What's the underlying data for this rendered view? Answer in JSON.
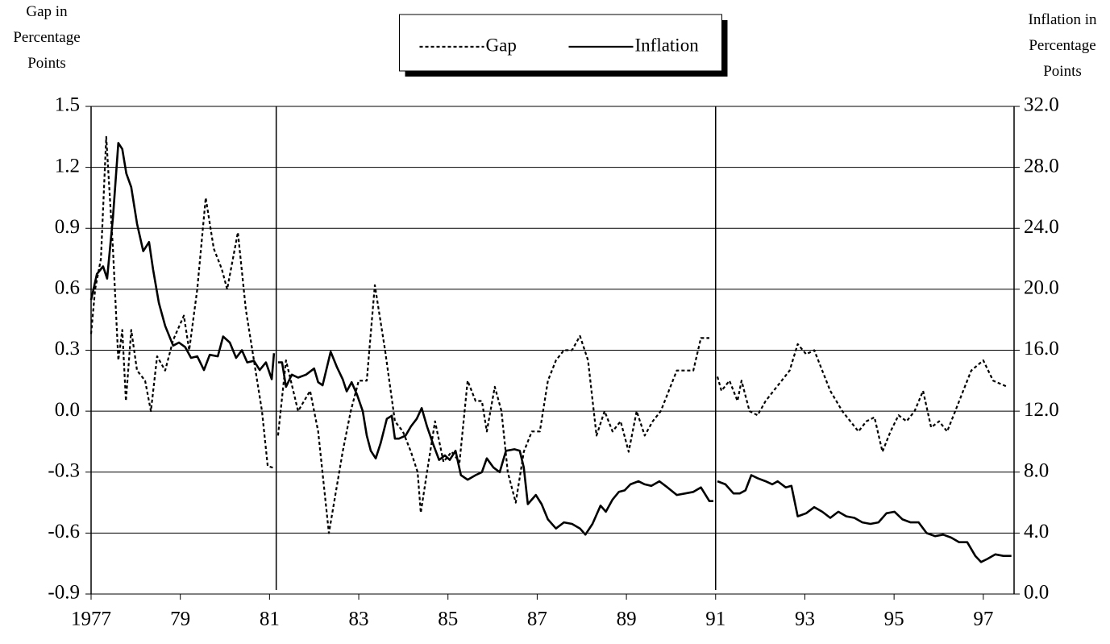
{
  "chart_data": {
    "type": "line",
    "y_label": [
      "Gap in",
      "Percentage",
      "Points"
    ],
    "y2_label": [
      "Inflation in",
      "Percentage",
      "Points"
    ],
    "xlim": [
      1977,
      1997.69
    ],
    "xticks": [
      {
        "value": 1977,
        "label": "1977"
      },
      {
        "value": 1979,
        "label": "79"
      },
      {
        "value": 1981,
        "label": "81"
      },
      {
        "value": 1983,
        "label": "83"
      },
      {
        "value": 1985,
        "label": "85"
      },
      {
        "value": 1987,
        "label": "87"
      },
      {
        "value": 1989,
        "label": "89"
      },
      {
        "value": 1991,
        "label": "91"
      },
      {
        "value": 1993,
        "label": "93"
      },
      {
        "value": 1995,
        "label": "95"
      },
      {
        "value": 1997,
        "label": "97"
      }
    ],
    "ylim": [
      -0.9,
      1.5
    ],
    "yticks": [
      -0.9,
      -0.6,
      -0.3,
      {
        "value": 0,
        "label": "0.0"
      },
      0.3,
      0.6,
      0.9,
      1.2,
      1.5
    ],
    "y2lim": [
      0,
      32
    ],
    "y2ticks": [
      {
        "value": 0,
        "label": "0.0"
      },
      {
        "value": 4,
        "label": "4.0"
      },
      {
        "value": 8,
        "label": "8.0"
      },
      {
        "value": 12,
        "label": "12.0"
      },
      {
        "value": 16,
        "label": "16.0"
      },
      {
        "value": 20,
        "label": "20.0"
      },
      {
        "value": 24,
        "label": "24.0"
      },
      {
        "value": 28,
        "label": "28.0"
      },
      {
        "value": 32,
        "label": "32.0"
      }
    ],
    "vlines": [
      1981.15,
      1991.0
    ],
    "grid": true,
    "legend": "top-center",
    "series": [
      {
        "name": "Gap",
        "color": "#000000",
        "style": "dotted",
        "x": [
          1977.0,
          1977.09,
          1977.22,
          1977.34,
          1977.49,
          1977.61,
          1977.7,
          1977.78,
          1977.9,
          1978.03,
          1978.21,
          1978.34,
          1978.48,
          1978.66,
          1978.84,
          1979.08,
          1979.2,
          1979.38,
          1979.57,
          1979.75,
          1979.93,
          1980.05,
          1980.29,
          1980.47,
          1980.65,
          1980.83,
          1980.96,
          1981.1,
          1981.15,
          1981.19,
          1981.37,
          1981.64,
          1981.91,
          1982.09,
          1982.33,
          1982.64,
          1982.82,
          1983.0,
          1983.18,
          1983.36,
          1983.59,
          1983.81,
          1983.99,
          1984.17,
          1984.32,
          1984.39,
          1984.53,
          1984.71,
          1984.9,
          1985.08,
          1985.26,
          1985.44,
          1985.62,
          1985.76,
          1985.87,
          1986.05,
          1986.2,
          1986.34,
          1986.52,
          1986.7,
          1986.88,
          1987.06,
          1987.24,
          1987.42,
          1987.6,
          1987.78,
          1987.96,
          1988.14,
          1988.33,
          1988.51,
          1988.69,
          1988.87,
          1989.05,
          1989.23,
          1989.41,
          1989.59,
          1989.77,
          1989.95,
          1990.13,
          1990.5,
          1990.67,
          1990.86,
          1991.0,
          1991.04,
          1991.13,
          1991.31,
          1991.49,
          1991.58,
          1991.76,
          1991.94,
          1992.12,
          1992.3,
          1992.48,
          1992.66,
          1992.84,
          1993.03,
          1993.21,
          1993.39,
          1993.57,
          1993.84,
          1994.02,
          1994.2,
          1994.38,
          1994.56,
          1994.74,
          1994.92,
          1995.1,
          1995.28,
          1995.46,
          1995.65,
          1995.83,
          1996.01,
          1996.19,
          1996.37,
          1996.55,
          1996.73,
          1997.0,
          1997.22,
          1997.54
        ],
        "values": [
          0.38,
          0.6,
          0.75,
          1.35,
          0.8,
          0.25,
          0.4,
          0.05,
          0.4,
          0.2,
          0.15,
          0.0,
          0.27,
          0.2,
          0.35,
          0.47,
          0.3,
          0.6,
          1.05,
          0.8,
          0.7,
          0.6,
          0.88,
          0.5,
          0.25,
          0.0,
          -0.27,
          -0.28,
          null,
          -0.12,
          0.25,
          0.0,
          0.1,
          -0.1,
          -0.6,
          -0.2,
          0.0,
          0.15,
          0.15,
          0.62,
          0.3,
          -0.05,
          -0.1,
          -0.2,
          -0.3,
          -0.5,
          -0.3,
          -0.05,
          -0.25,
          -0.2,
          -0.25,
          0.15,
          0.05,
          0.05,
          -0.1,
          0.12,
          0.0,
          -0.3,
          -0.45,
          -0.2,
          -0.1,
          -0.1,
          0.15,
          0.25,
          0.3,
          0.3,
          0.37,
          0.25,
          -0.12,
          0.0,
          -0.1,
          -0.05,
          -0.2,
          0.0,
          -0.12,
          -0.05,
          0.0,
          0.1,
          0.2,
          0.2,
          0.36,
          0.36,
          null,
          0.17,
          0.1,
          0.15,
          0.05,
          0.15,
          0.0,
          -0.02,
          0.05,
          0.1,
          0.15,
          0.2,
          0.33,
          0.28,
          0.3,
          0.2,
          0.1,
          0.0,
          -0.05,
          -0.1,
          -0.05,
          -0.03,
          -0.2,
          -0.1,
          -0.02,
          -0.05,
          0.0,
          0.1,
          -0.08,
          -0.05,
          -0.1,
          0.0,
          0.1,
          0.2,
          0.25,
          0.15,
          0.12
        ]
      },
      {
        "name": "Inflation",
        "color": "#000000",
        "style": "solid",
        "axis": "y2",
        "x": [
          1977.0,
          1977.13,
          1977.27,
          1977.36,
          1977.49,
          1977.61,
          1977.7,
          1977.79,
          1977.9,
          1978.03,
          1978.17,
          1978.3,
          1978.39,
          1978.52,
          1978.66,
          1978.84,
          1978.97,
          1979.11,
          1979.24,
          1979.38,
          1979.53,
          1979.66,
          1979.84,
          1979.96,
          1980.11,
          1980.25,
          1980.38,
          1980.5,
          1980.65,
          1980.78,
          1980.92,
          1981.05,
          1981.1,
          1981.15,
          1981.19,
          1981.28,
          1981.37,
          1981.5,
          1981.64,
          1981.82,
          1982.0,
          1982.09,
          1982.19,
          1982.37,
          1982.51,
          1982.64,
          1982.73,
          1982.84,
          1982.96,
          1983.09,
          1983.18,
          1983.27,
          1983.38,
          1983.49,
          1983.63,
          1983.74,
          1983.81,
          1983.9,
          1984.05,
          1984.17,
          1984.3,
          1984.41,
          1984.53,
          1984.66,
          1984.8,
          1984.93,
          1985.04,
          1985.17,
          1985.29,
          1985.44,
          1985.62,
          1985.76,
          1985.87,
          1986.02,
          1986.16,
          1986.3,
          1986.49,
          1986.61,
          1986.7,
          1986.79,
          1986.97,
          1987.1,
          1987.24,
          1987.42,
          1987.6,
          1987.78,
          1987.96,
          1988.08,
          1988.24,
          1988.42,
          1988.54,
          1988.69,
          1988.83,
          1988.96,
          1989.09,
          1989.27,
          1989.41,
          1989.56,
          1989.74,
          1989.92,
          1990.13,
          1990.32,
          1990.5,
          1990.67,
          1990.86,
          1990.95,
          1991.0,
          1991.04,
          1991.22,
          1991.4,
          1991.54,
          1991.67,
          1991.8,
          1991.94,
          1992.12,
          1992.27,
          1992.39,
          1992.57,
          1992.7,
          1992.84,
          1993.03,
          1993.21,
          1993.39,
          1993.57,
          1993.75,
          1993.93,
          1994.11,
          1994.29,
          1994.47,
          1994.65,
          1994.83,
          1995.01,
          1995.19,
          1995.37,
          1995.55,
          1995.73,
          1995.92,
          1996.1,
          1996.28,
          1996.46,
          1996.64,
          1996.82,
          1996.95,
          1997.09,
          1997.27,
          1997.45,
          1997.63
        ],
        "values": [
          19.3,
          21.0,
          21.5,
          20.7,
          24.7,
          29.6,
          29.2,
          27.6,
          26.7,
          24.3,
          22.5,
          23.1,
          21.3,
          19.1,
          17.6,
          16.3,
          16.5,
          16.2,
          15.5,
          15.6,
          14.7,
          15.7,
          15.6,
          16.9,
          16.5,
          15.5,
          16.0,
          15.2,
          15.3,
          14.7,
          15.2,
          14.1,
          15.8,
          null,
          15.2,
          15.2,
          13.6,
          14.4,
          14.2,
          14.4,
          14.8,
          13.9,
          13.7,
          15.9,
          14.9,
          14.1,
          13.3,
          13.9,
          13.1,
          12.0,
          10.4,
          9.4,
          8.9,
          9.9,
          11.5,
          11.7,
          10.2,
          10.2,
          10.4,
          11.0,
          11.5,
          12.2,
          11.0,
          9.9,
          8.8,
          9.1,
          8.8,
          9.4,
          7.8,
          7.5,
          7.8,
          8.0,
          8.9,
          8.3,
          8.0,
          9.4,
          9.5,
          9.4,
          8.3,
          5.9,
          6.5,
          5.9,
          4.9,
          4.3,
          4.7,
          4.6,
          4.3,
          3.9,
          4.6,
          5.8,
          5.4,
          6.2,
          6.7,
          6.8,
          7.2,
          7.4,
          7.2,
          7.1,
          7.4,
          7.0,
          6.5,
          6.6,
          6.7,
          7.0,
          6.1,
          6.1,
          null,
          7.4,
          7.2,
          6.6,
          6.6,
          6.8,
          7.8,
          7.6,
          7.4,
          7.2,
          7.4,
          7.0,
          7.1,
          5.1,
          5.3,
          5.7,
          5.4,
          5.0,
          5.4,
          5.1,
          5.0,
          4.7,
          4.6,
          4.7,
          5.3,
          5.4,
          4.9,
          4.7,
          4.7,
          4.0,
          3.8,
          3.9,
          3.7,
          3.4,
          3.4,
          2.5,
          2.1,
          2.3,
          2.6,
          2.5,
          2.5
        ]
      }
    ]
  }
}
